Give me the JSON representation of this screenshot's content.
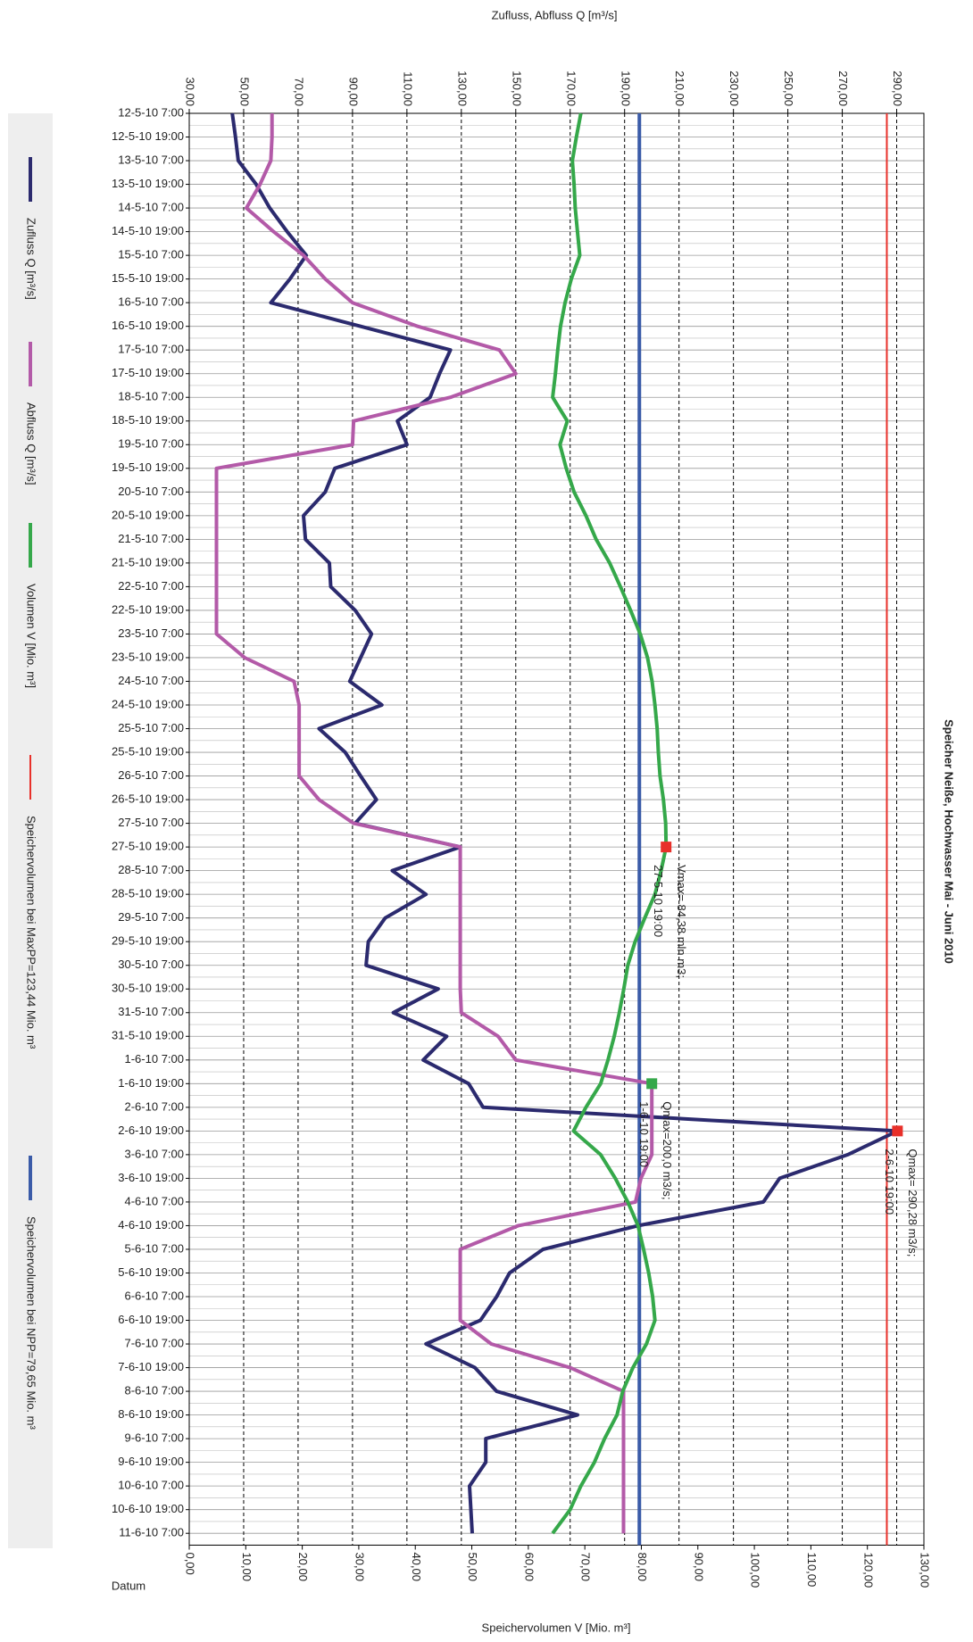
{
  "chart_data": {
    "type": "line",
    "title": "Speicher Neiße, Hochwasser Mai - Juni 2010",
    "xlabel": "Datum",
    "ylabel": "Zufluss, Abfluss Q [m³/s]",
    "y2label": "Speichervolumen V [Mio. m³]",
    "categories": [
      "12-5-10 7:00",
      "12-5-10 19:00",
      "13-5-10 7:00",
      "13-5-10 19:00",
      "14-5-10 7:00",
      "14-5-10 19:00",
      "15-5-10 7:00",
      "15-5-10 19:00",
      "16-5-10 7:00",
      "16-5-10 19:00",
      "17-5-10 7:00",
      "17-5-10 19:00",
      "18-5-10 7:00",
      "18-5-10 19:00",
      "19-5-10 7:00",
      "19-5-10 19:00",
      "20-5-10 7:00",
      "20-5-10 19:00",
      "21-5-10 7:00",
      "21-5-10 19:00",
      "22-5-10 7:00",
      "22-5-10 19:00",
      "23-5-10 7:00",
      "23-5-10 19:00",
      "24-5-10 7:00",
      "24-5-10 19:00",
      "25-5-10 7:00",
      "25-5-10 19:00",
      "26-5-10 7:00",
      "26-5-10 19:00",
      "27-5-10 7:00",
      "27-5-10 19:00",
      "28-5-10 7:00",
      "28-5-10 19:00",
      "29-5-10 7:00",
      "29-5-10 19:00",
      "30-5-10 7:00",
      "30-5-10 19:00",
      "31-5-10 7:00",
      "31-5-10 19:00",
      "1-6-10 7:00",
      "1-6-10 19:00",
      "2-6-10 7:00",
      "2-6-10 19:00",
      "3-6-10 7:00",
      "3-6-10 19:00",
      "4-6-10 7:00",
      "4-6-10 19:00",
      "5-6-10 7:00",
      "5-6-10 19:00",
      "6-6-10 7:00",
      "6-6-10 19:00",
      "7-6-10 7:00",
      "7-6-10 19:00",
      "8-6-10 7:00",
      "8-6-10 19:00",
      "9-6-10 7:00",
      "9-6-10 19:00",
      "10-6-10 7:00",
      "10-6-10 19:00",
      "11-6-10 7:00"
    ],
    "series": [
      {
        "name": "Zufluss Q [m³/s]",
        "color": "#2b2a6e",
        "axis": "y",
        "values": [
          45.8,
          47,
          48,
          54.6,
          59.6,
          66,
          73,
          67,
          60,
          93,
          126,
          122,
          118.5,
          106.5,
          110,
          83.5,
          80,
          72,
          72.7,
          81.5,
          82,
          91,
          97,
          93,
          89,
          100.8,
          77.7,
          87.3,
          93,
          98.8,
          91,
          129.6,
          104.6,
          117,
          102,
          95.8,
          95,
          121.5,
          105,
          124.6,
          116,
          132.7,
          138,
          290.28,
          272,
          247,
          241,
          195,
          160,
          147.7,
          143,
          137,
          117,
          135,
          143,
          172.7,
          139,
          139,
          133,
          133.5,
          134
        ]
      },
      {
        "name": "Abfluss Q [m³/s]",
        "color": "#b35aa8",
        "axis": "y",
        "values": [
          60.4,
          60.4,
          60,
          56,
          51,
          61,
          72,
          80,
          90,
          114,
          144,
          150,
          126,
          90.4,
          90,
          40,
          40,
          40,
          40,
          40,
          40,
          40,
          40,
          50.4,
          68.5,
          70.4,
          70.4,
          70.4,
          70.4,
          77.7,
          90.4,
          129.6,
          129.6,
          129.6,
          129.6,
          129.6,
          129.6,
          129.6,
          130,
          143.5,
          150,
          200,
          200,
          200,
          200,
          196,
          194,
          151,
          129.6,
          129.6,
          129.6,
          129.6,
          141,
          170,
          189.6,
          189.6,
          189.6,
          189.6,
          189.6,
          189.6,
          189.6
        ]
      },
      {
        "name": "Volumen V [Mio. m³]",
        "color": "#35a84a",
        "axis": "y2",
        "values": [
          69.3,
          68.5,
          67.8,
          68.1,
          68.3,
          68.7,
          69.1,
          67.6,
          66.5,
          65.7,
          65.2,
          64.8,
          64.3,
          66.9,
          65.6,
          66.7,
          68.1,
          70.2,
          72,
          74.4,
          76.3,
          78.1,
          79.8,
          81.1,
          81.9,
          82.4,
          82.8,
          83,
          83.3,
          83.9,
          84.3,
          84.38,
          83.5,
          82.4,
          80.6,
          78.9,
          77.6,
          76.9,
          76.1,
          75.2,
          74.1,
          72.8,
          70.2,
          68,
          72.8,
          75.4,
          77.6,
          79.4,
          80.4,
          81.3,
          82,
          82.4,
          80.9,
          78.5,
          76.7,
          75.7,
          73.5,
          71.7,
          69.3,
          67.4,
          64.3
        ]
      }
    ],
    "reference_lines": [
      {
        "name": "Speichervolumen bei MaxPP=123,44 Mio. m³",
        "color": "#e8302a",
        "value": 123.44,
        "axis": "y2"
      },
      {
        "name": "Speichervolumen bei NPP=79,65 Mio. m³",
        "color": "#3a5ba8",
        "value": 79.65,
        "axis": "y2"
      }
    ],
    "annotations": [
      {
        "lines": [
          "Qmax= 290,28 m3/s;",
          "2-6-10 19:00"
        ],
        "color": "#3a5ba8",
        "marker_color": "#e8302a"
      },
      {
        "lines": [
          "Qmax=200,0 m3/s;",
          "1-6-10 19:00"
        ],
        "color": "#b35aa8",
        "marker_color": "#35a84a"
      },
      {
        "lines": [
          "Vmax= 84,38 mln m3;",
          "27-5-10 19:00"
        ],
        "color": "#35a84a",
        "marker_color": "#e8302a"
      }
    ],
    "ylim": [
      30,
      300
    ],
    "yticks": [
      {
        "value": 30,
        "label": "30,00"
      },
      {
        "value": 50,
        "label": "50,00"
      },
      {
        "value": 70,
        "label": "70,00"
      },
      {
        "value": 90,
        "label": "90,00"
      },
      {
        "value": 110,
        "label": "110,00"
      },
      {
        "value": 130,
        "label": "130,00"
      },
      {
        "value": 150,
        "label": "150,00"
      },
      {
        "value": 170,
        "label": "170,00"
      },
      {
        "value": 190,
        "label": "190,00"
      },
      {
        "value": 210,
        "label": "210,00"
      },
      {
        "value": 230,
        "label": "230,00"
      },
      {
        "value": 250,
        "label": "250,00"
      },
      {
        "value": 270,
        "label": "270,00"
      },
      {
        "value": 290,
        "label": "290,00"
      }
    ],
    "y2lim": [
      0,
      130
    ],
    "y2ticks": [
      {
        "value": 0,
        "label": "0,00"
      },
      {
        "value": 10,
        "label": "10,00"
      },
      {
        "value": 20,
        "label": "20,00"
      },
      {
        "value": 30,
        "label": "30,00"
      },
      {
        "value": 40,
        "label": "40,00"
      },
      {
        "value": 50,
        "label": "50,00"
      },
      {
        "value": 60,
        "label": "60,00"
      },
      {
        "value": 70,
        "label": "70,00"
      },
      {
        "value": 80,
        "label": "80,00"
      },
      {
        "value": 90,
        "label": "90,00"
      },
      {
        "value": 100,
        "label": "100,00"
      },
      {
        "value": 110,
        "label": "110,00"
      },
      {
        "value": 120,
        "label": "120,00"
      },
      {
        "value": 130,
        "label": "130,00"
      }
    ],
    "grid": true,
    "legend": "left"
  }
}
